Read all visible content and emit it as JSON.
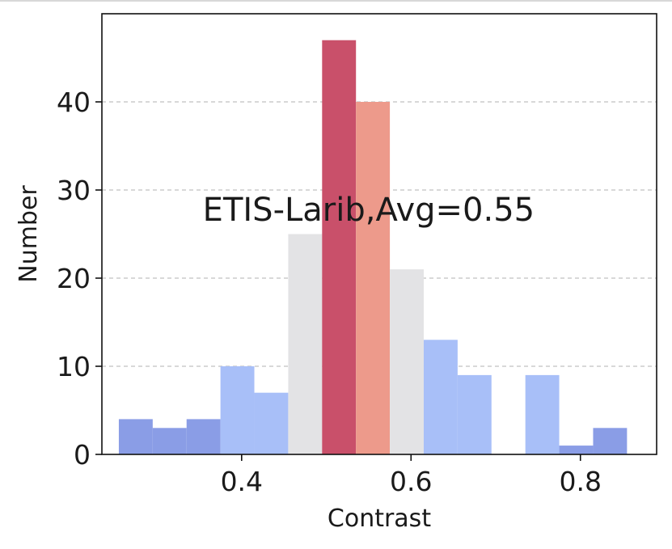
{
  "chart_data": {
    "type": "bar",
    "annotation": "ETIS-Larib,Avg=0.55",
    "xlabel": "Contrast",
    "ylabel": "Number",
    "xlim": [
      0.235,
      0.89
    ],
    "ylim": [
      0,
      50
    ],
    "xticks": [
      0.4,
      0.6,
      0.8
    ],
    "xtick_labels": [
      "0.4",
      "0.6",
      "0.8"
    ],
    "yticks": [
      0,
      10,
      20,
      30,
      40
    ],
    "ytick_labels": [
      "0",
      "10",
      "20",
      "30",
      "40"
    ],
    "grid": "y-dashed",
    "bins": [
      {
        "x0": 0.255,
        "x1": 0.295,
        "value": 4,
        "color": "#8a9de6"
      },
      {
        "x0": 0.295,
        "x1": 0.335,
        "value": 3,
        "color": "#8a9de6"
      },
      {
        "x0": 0.335,
        "x1": 0.375,
        "value": 4,
        "color": "#8a9de6"
      },
      {
        "x0": 0.375,
        "x1": 0.415,
        "value": 10,
        "color": "#a8bff8"
      },
      {
        "x0": 0.415,
        "x1": 0.455,
        "value": 7,
        "color": "#a8bff8"
      },
      {
        "x0": 0.455,
        "x1": 0.495,
        "value": 25,
        "color": "#e3e3e5"
      },
      {
        "x0": 0.495,
        "x1": 0.535,
        "value": 47,
        "color": "#c9506a"
      },
      {
        "x0": 0.535,
        "x1": 0.575,
        "value": 40,
        "color": "#ed9a8b"
      },
      {
        "x0": 0.575,
        "x1": 0.615,
        "value": 21,
        "color": "#e3e3e5"
      },
      {
        "x0": 0.615,
        "x1": 0.655,
        "value": 13,
        "color": "#a8bff8"
      },
      {
        "x0": 0.655,
        "x1": 0.695,
        "value": 9,
        "color": "#a8bff8"
      },
      {
        "x0": 0.695,
        "x1": 0.735,
        "value": 0,
        "color": "#a8bff8"
      },
      {
        "x0": 0.735,
        "x1": 0.775,
        "value": 9,
        "color": "#a8bff8"
      },
      {
        "x0": 0.775,
        "x1": 0.815,
        "value": 1,
        "color": "#8a9de6"
      },
      {
        "x0": 0.815,
        "x1": 0.855,
        "value": 3,
        "color": "#8a9de6"
      }
    ]
  }
}
